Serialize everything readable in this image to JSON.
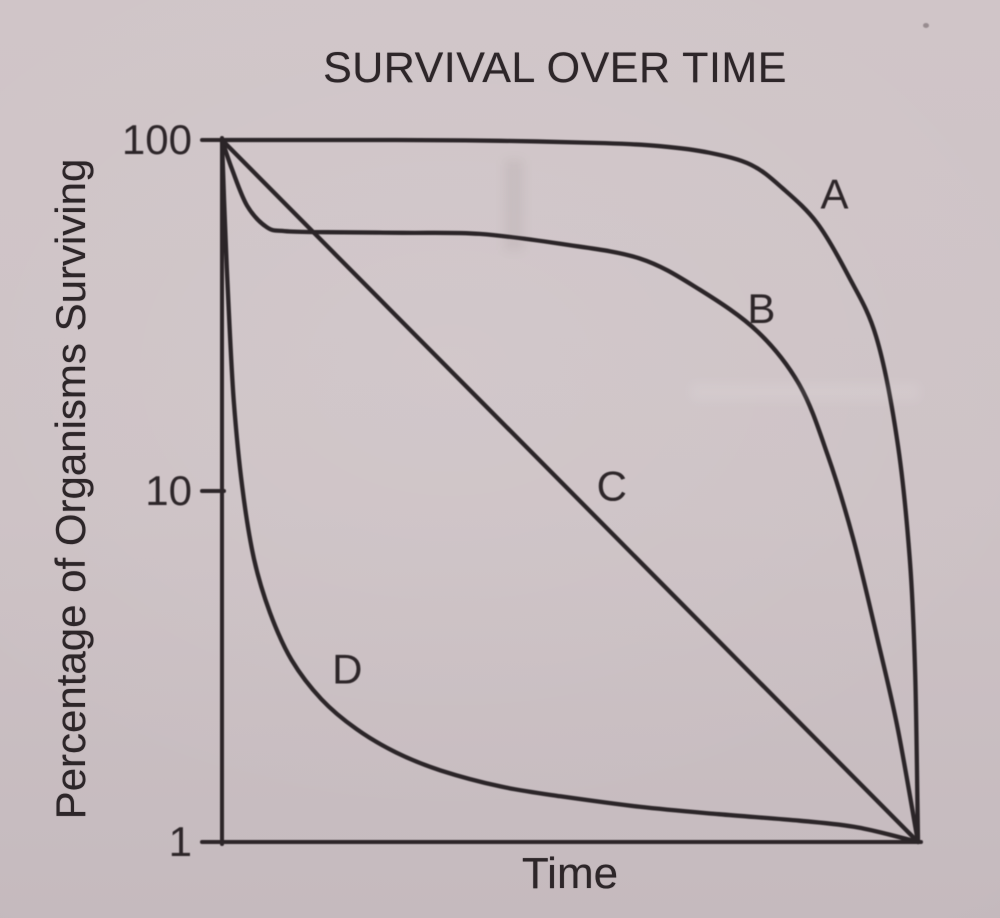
{
  "page": {
    "background": "#cdc2c5",
    "ink": "#2d2629"
  },
  "chart_data": {
    "type": "line",
    "title": "SURVIVAL OVER TIME",
    "xlabel": "Time",
    "ylabel": "Percentage of Organisms Surviving",
    "y_scale": "log",
    "ylim": [
      1,
      100
    ],
    "x_range": [
      0,
      100
    ],
    "grid": false,
    "legend": "inline-curve-labels",
    "yticks": [
      {
        "value": 100,
        "label": "100"
      },
      {
        "value": 10,
        "label": "10"
      },
      {
        "value": 1,
        "label": "1"
      }
    ],
    "series": [
      {
        "name": "A",
        "label_pos": {
          "x": 88,
          "y": 70
        },
        "points": [
          [
            0,
            100
          ],
          [
            12,
            100
          ],
          [
            25,
            100
          ],
          [
            40,
            99.5
          ],
          [
            55,
            98
          ],
          [
            63,
            96
          ],
          [
            70,
            92
          ],
          [
            76,
            85
          ],
          [
            80.5,
            73
          ],
          [
            85.5,
            58
          ],
          [
            90,
            41
          ],
          [
            94,
            27.5
          ],
          [
            97,
            14
          ],
          [
            98.8,
            6.5
          ],
          [
            99.6,
            3
          ],
          [
            100,
            1
          ]
        ]
      },
      {
        "name": "B",
        "label_pos": {
          "x": 77.5,
          "y": 33
        },
        "points": [
          [
            0,
            100
          ],
          [
            1.4,
            83
          ],
          [
            3.6,
            65
          ],
          [
            6.4,
            56.5
          ],
          [
            9,
            55
          ],
          [
            15,
            54.6
          ],
          [
            26,
            54.4
          ],
          [
            37,
            54
          ],
          [
            48.6,
            50.6
          ],
          [
            60,
            46
          ],
          [
            68.6,
            37.5
          ],
          [
            77,
            28.4
          ],
          [
            83,
            20
          ],
          [
            87,
            12.7
          ],
          [
            90.7,
            7.3
          ],
          [
            94.3,
            3.7
          ],
          [
            97.1,
            2.1
          ],
          [
            100,
            1
          ]
        ]
      },
      {
        "name": "C",
        "label_pos": {
          "x": 56,
          "y": 10.3
        },
        "points": [
          [
            0,
            100
          ],
          [
            25,
            31.6
          ],
          [
            50,
            10
          ],
          [
            75,
            3.16
          ],
          [
            100,
            1
          ]
        ]
      },
      {
        "name": "D",
        "label_pos": {
          "x": 18,
          "y": 3.1
        },
        "points": [
          [
            0,
            100
          ],
          [
            0.3,
            67
          ],
          [
            0.9,
            35
          ],
          [
            1.7,
            18
          ],
          [
            2.9,
            10.3
          ],
          [
            4.6,
            6.4
          ],
          [
            6.9,
            4.5
          ],
          [
            10,
            3.3
          ],
          [
            14.3,
            2.55
          ],
          [
            19.3,
            2.1
          ],
          [
            25,
            1.8
          ],
          [
            31.4,
            1.6
          ],
          [
            40,
            1.44
          ],
          [
            48.6,
            1.35
          ],
          [
            60,
            1.26
          ],
          [
            71.4,
            1.2
          ],
          [
            83,
            1.15
          ],
          [
            91.4,
            1.1
          ],
          [
            100,
            1
          ]
        ]
      }
    ]
  }
}
